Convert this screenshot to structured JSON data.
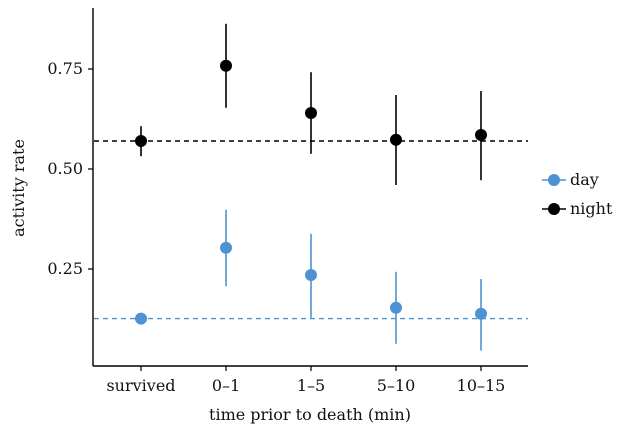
{
  "chart_data": {
    "type": "scatter",
    "title": "",
    "xlabel": "time prior to death (min)",
    "ylabel": "activity rate",
    "categories": [
      "survived",
      "0–1",
      "1–5",
      "5–10",
      "10–15"
    ],
    "ylim": [
      0.0,
      0.9
    ],
    "yticks": [
      0.25,
      0.5,
      0.75
    ],
    "ytick_labels": [
      "0.25",
      "0.50",
      "0.75"
    ],
    "grid": false,
    "legend_position": "right",
    "series": [
      {
        "name": "day",
        "color": "#4e93d1",
        "values": [
          0.126,
          0.303,
          0.235,
          0.153,
          0.138
        ],
        "lower": [
          0.115,
          0.207,
          0.128,
          0.063,
          0.046
        ],
        "upper": [
          0.138,
          0.398,
          0.338,
          0.243,
          0.225
        ],
        "reference_line": 0.126
      },
      {
        "name": "night",
        "color": "#000000",
        "values": [
          0.57,
          0.758,
          0.64,
          0.573,
          0.585
        ],
        "lower": [
          0.532,
          0.653,
          0.538,
          0.46,
          0.472
        ],
        "upper": [
          0.607,
          0.863,
          0.742,
          0.685,
          0.695
        ],
        "reference_line": 0.57
      }
    ]
  }
}
